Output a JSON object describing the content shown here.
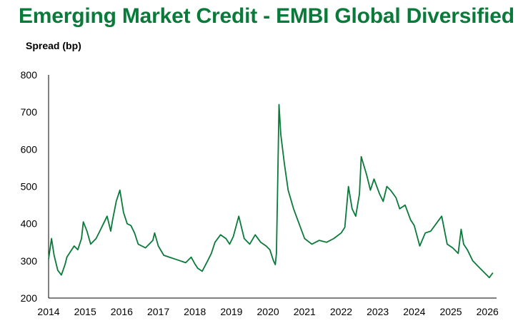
{
  "chart_data": {
    "type": "line",
    "title": "Emerging Market Credit - EMBI Global Diversified",
    "ylabel": "Spread (bp)",
    "xlabel": "",
    "ylim": [
      200,
      800
    ],
    "yticks": [
      200,
      300,
      400,
      500,
      600,
      700,
      800
    ],
    "xlim": [
      2014.0,
      2026.25
    ],
    "xticks": [
      2014,
      2015,
      2016,
      2017,
      2018,
      2019,
      2020,
      2021,
      2022,
      2023,
      2024,
      2025,
      2026
    ],
    "grid": false,
    "series": [
      {
        "name": "",
        "color": "#0a7a3a",
        "x": [
          2014.0,
          2014.08,
          2014.15,
          2014.25,
          2014.35,
          2014.45,
          2014.5,
          2014.6,
          2014.7,
          2014.8,
          2014.9,
          2014.95,
          2015.05,
          2015.15,
          2015.3,
          2015.4,
          2015.5,
          2015.6,
          2015.7,
          2015.75,
          2015.85,
          2015.95,
          2016.05,
          2016.15,
          2016.25,
          2016.35,
          2016.45,
          2016.55,
          2016.65,
          2016.75,
          2016.85,
          2016.9,
          2017.0,
          2017.15,
          2017.3,
          2017.45,
          2017.6,
          2017.75,
          2017.9,
          2018.0,
          2018.08,
          2018.2,
          2018.35,
          2018.45,
          2018.55,
          2018.7,
          2018.85,
          2018.95,
          2019.05,
          2019.2,
          2019.35,
          2019.5,
          2019.65,
          2019.8,
          2019.95,
          2020.05,
          2020.15,
          2020.2,
          2020.23,
          2020.26,
          2020.3,
          2020.35,
          2020.45,
          2020.55,
          2020.7,
          2020.85,
          2021.0,
          2021.2,
          2021.4,
          2021.6,
          2021.8,
          2022.0,
          2022.1,
          2022.2,
          2022.3,
          2022.4,
          2022.5,
          2022.55,
          2022.7,
          2022.8,
          2022.9,
          2023.05,
          2023.15,
          2023.25,
          2023.35,
          2023.5,
          2023.6,
          2023.75,
          2023.9,
          2024.0,
          2024.15,
          2024.3,
          2024.45,
          2024.6,
          2024.75,
          2024.9,
          2025.05,
          2025.2,
          2025.28,
          2025.35,
          2025.45,
          2025.6,
          2025.75,
          2025.9,
          2026.05,
          2026.15
        ],
        "values": [
          305,
          360,
          315,
          275,
          262,
          290,
          310,
          325,
          340,
          330,
          360,
          405,
          380,
          345,
          360,
          380,
          400,
          420,
          380,
          410,
          460,
          490,
          430,
          400,
          395,
          375,
          345,
          340,
          335,
          345,
          355,
          375,
          340,
          315,
          310,
          305,
          300,
          295,
          310,
          292,
          280,
          272,
          300,
          320,
          350,
          370,
          360,
          345,
          365,
          420,
          360,
          345,
          370,
          350,
          340,
          330,
          300,
          290,
          320,
          480,
          720,
          640,
          560,
          490,
          440,
          400,
          360,
          345,
          355,
          350,
          360,
          375,
          390,
          500,
          440,
          420,
          480,
          580,
          530,
          490,
          520,
          480,
          460,
          500,
          490,
          470,
          440,
          450,
          410,
          395,
          340,
          375,
          380,
          400,
          420,
          345,
          335,
          320,
          385,
          345,
          330,
          300,
          285,
          270,
          255,
          268
        ]
      }
    ]
  }
}
